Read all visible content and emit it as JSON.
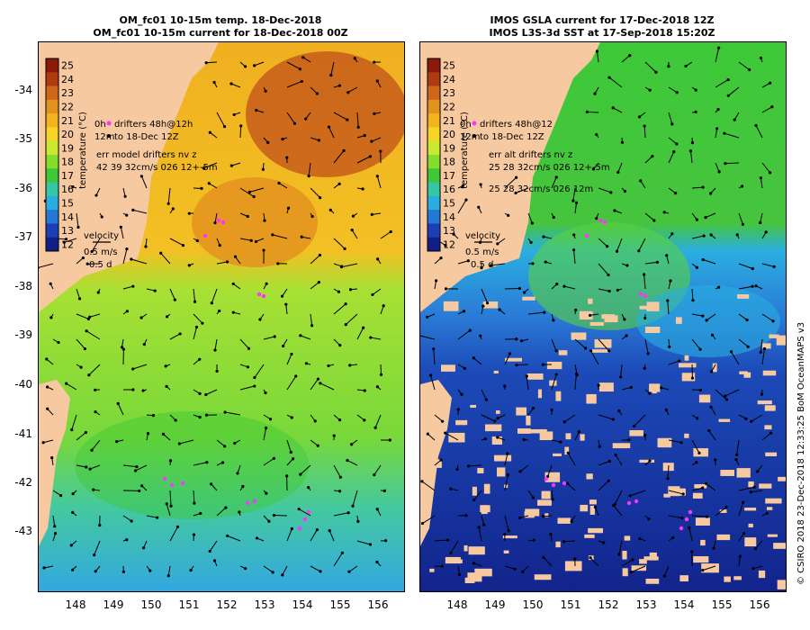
{
  "left_panel": {
    "title_line1": "OM_fc01 10-15m temp. 18-Dec-2018",
    "title_line2": "OM_fc01 10-15m current for 18-Dec-2018 00Z",
    "colorbar_label": "temperature (°C)",
    "legend": {
      "line1_prefix": "0h",
      "line1": "drifters 48h@12h",
      "line2_prefix": "12m",
      "line2": "to 18-Dec 12Z",
      "err_title": "err model drifters nv z",
      "err_row1": "42 39 32cm/s 026 12+-5m",
      "err_row2": ""
    }
  },
  "right_panel": {
    "title_line1": "IMOS GSLA current for 17-Dec-2018 12Z",
    "title_line2": "IMOS L3S-3d SST at 17-Sep-2018 15:20Z",
    "colorbar_label": "temperature (°C)",
    "legend": {
      "line1_prefix": "0h",
      "line1": "drifters 48h@12",
      "line2_prefix": "12m",
      "line2": "to 18-Dec 12Z",
      "err_title": "err alt drifters nv z",
      "err_row1": "25 28 32cm/s 026 12+-5m",
      "err_row2": "25 28 32cm/s 026 12m"
    }
  },
  "velocity_key": {
    "label": "velocity",
    "speed": "0.5 m/s",
    "duration": "0.5 d"
  },
  "colorbar": {
    "ticks": [
      "25",
      "24",
      "23",
      "22",
      "21",
      "20",
      "19",
      "18",
      "17",
      "16",
      "15",
      "14",
      "13",
      "12"
    ],
    "colors": [
      "#8a1a0a",
      "#b03a10",
      "#d0661c",
      "#e39220",
      "#f2b41e",
      "#f6d426",
      "#c9e832",
      "#84dd2a",
      "#3ec838",
      "#35c6a6",
      "#2aaee0",
      "#2478d6",
      "#1c3fb8",
      "#101f88"
    ]
  },
  "lat_ticks": [
    "-34",
    "-35",
    "-36",
    "-37",
    "-38",
    "-39",
    "-40",
    "-41",
    "-42",
    "-43"
  ],
  "lon_ticks": [
    "148",
    "149",
    "150",
    "151",
    "152",
    "153",
    "154",
    "155",
    "156"
  ],
  "credit": "© CSIRO 2018   23-Dec-2018 12:33:25 BoM OceanMAPS v3",
  "colors": {
    "land": "#f6c9a0",
    "drifter": "#ff33ff",
    "arrow": "#000000"
  }
}
